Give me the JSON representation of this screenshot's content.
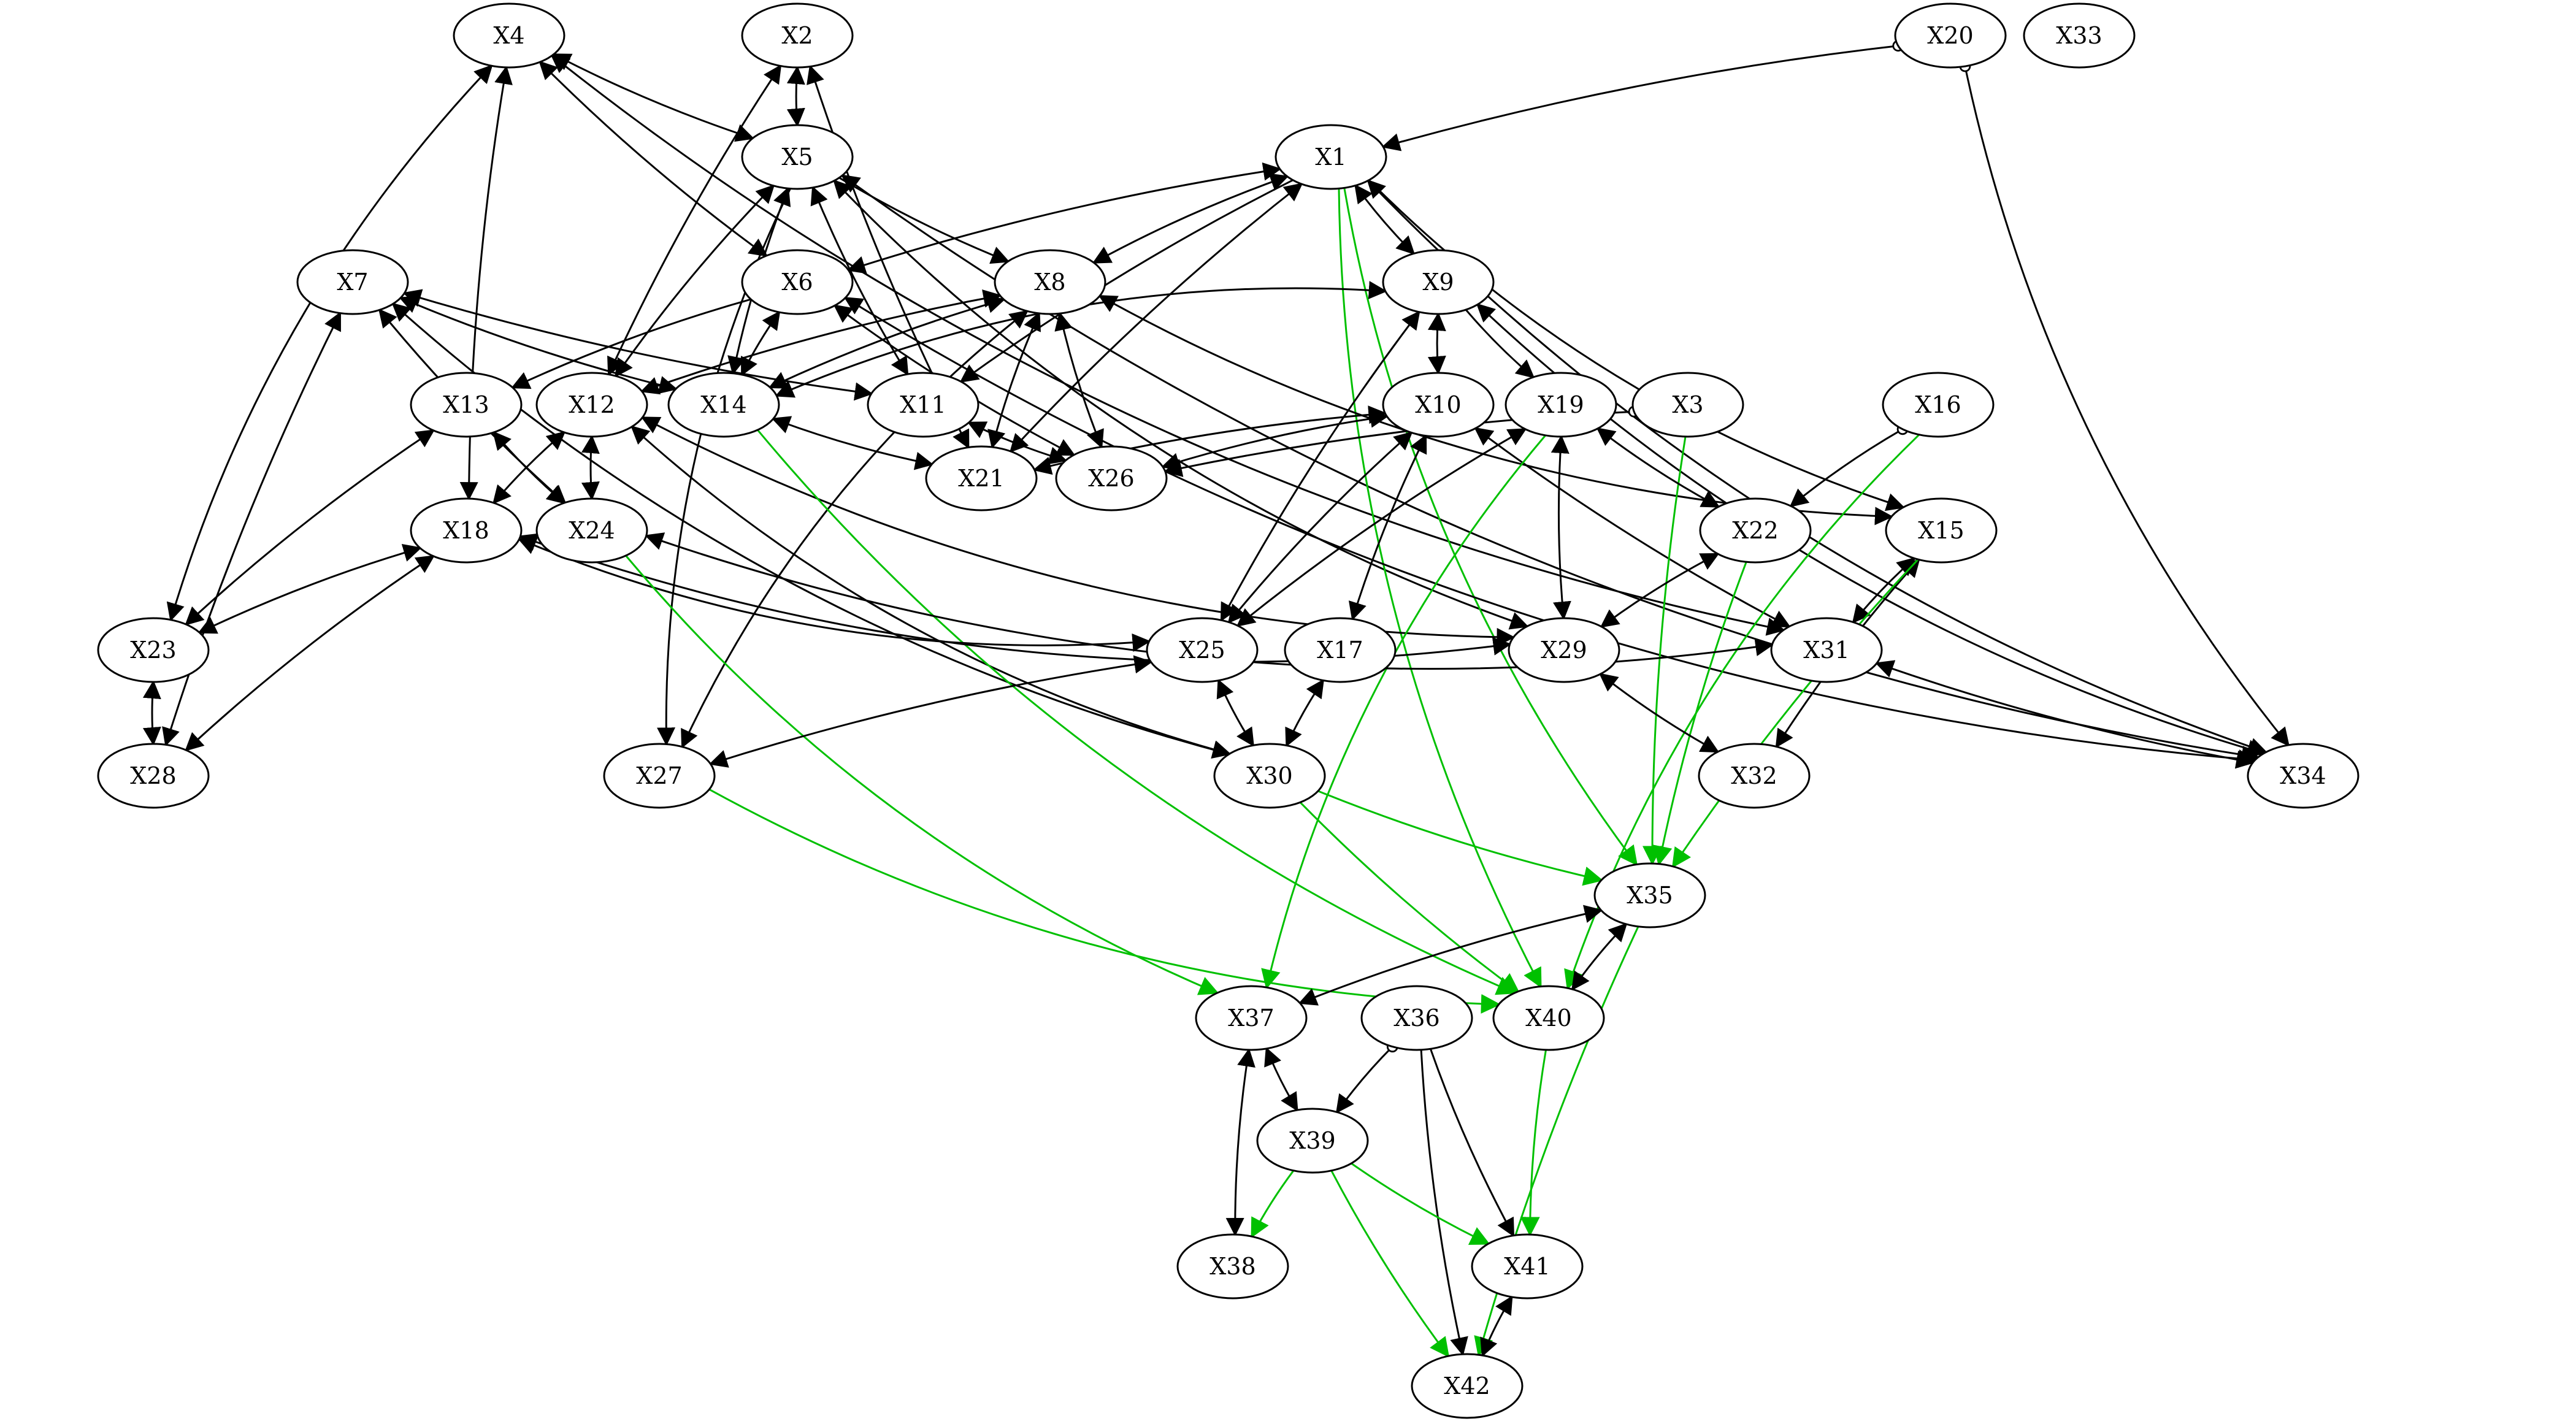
{
  "nodes": [
    {
      "id": "X1",
      "label": "X1"
    },
    {
      "id": "X2",
      "label": "X2"
    },
    {
      "id": "X3",
      "label": "X3"
    },
    {
      "id": "X4",
      "label": "X4"
    },
    {
      "id": "X5",
      "label": "X5"
    },
    {
      "id": "X6",
      "label": "X6"
    },
    {
      "id": "X7",
      "label": "X7"
    },
    {
      "id": "X8",
      "label": "X8"
    },
    {
      "id": "X9",
      "label": "X9"
    },
    {
      "id": "X10",
      "label": "X10"
    },
    {
      "id": "X11",
      "label": "X11"
    },
    {
      "id": "X12",
      "label": "X12"
    },
    {
      "id": "X13",
      "label": "X13"
    },
    {
      "id": "X14",
      "label": "X14"
    },
    {
      "id": "X15",
      "label": "X15"
    },
    {
      "id": "X16",
      "label": "X16"
    },
    {
      "id": "X17",
      "label": "X17"
    },
    {
      "id": "X18",
      "label": "X18"
    },
    {
      "id": "X19",
      "label": "X19"
    },
    {
      "id": "X20",
      "label": "X20"
    },
    {
      "id": "X21",
      "label": "X21"
    },
    {
      "id": "X22",
      "label": "X22"
    },
    {
      "id": "X23",
      "label": "X23"
    },
    {
      "id": "X24",
      "label": "X24"
    },
    {
      "id": "X25",
      "label": "X25"
    },
    {
      "id": "X26",
      "label": "X26"
    },
    {
      "id": "X27",
      "label": "X27"
    },
    {
      "id": "X28",
      "label": "X28"
    },
    {
      "id": "X29",
      "label": "X29"
    },
    {
      "id": "X30",
      "label": "X30"
    },
    {
      "id": "X31",
      "label": "X31"
    },
    {
      "id": "X32",
      "label": "X32"
    },
    {
      "id": "X33",
      "label": "X33"
    },
    {
      "id": "X34",
      "label": "X34"
    },
    {
      "id": "X35",
      "label": "X35"
    },
    {
      "id": "X36",
      "label": "X36"
    },
    {
      "id": "X37",
      "label": "X37"
    },
    {
      "id": "X38",
      "label": "X38"
    },
    {
      "id": "X39",
      "label": "X39"
    },
    {
      "id": "X40",
      "label": "X40"
    },
    {
      "id": "X41",
      "label": "X41"
    },
    {
      "id": "X42",
      "label": "X42"
    }
  ],
  "edges": [
    {
      "from": "X2",
      "to": "X5",
      "type": "bi"
    },
    {
      "from": "X4",
      "to": "X5",
      "type": "bi"
    },
    {
      "from": "X4",
      "to": "X6",
      "type": "bi"
    },
    {
      "from": "X4",
      "to": "X23",
      "type": "bi"
    },
    {
      "from": "X4",
      "to": "X18",
      "type": "bi"
    },
    {
      "from": "X4",
      "to": "X31",
      "type": "bi"
    },
    {
      "from": "X20",
      "to": "X1",
      "type": "circle-arrow"
    },
    {
      "from": "X20",
      "to": "X34",
      "type": "circle-arrow"
    },
    {
      "from": "X5",
      "to": "X8",
      "type": "directed"
    },
    {
      "from": "X5",
      "to": "X14",
      "type": "bi"
    },
    {
      "from": "X5",
      "to": "X11",
      "type": "bi"
    },
    {
      "from": "X5",
      "to": "X12",
      "type": "bi"
    },
    {
      "from": "X5",
      "to": "X27",
      "type": "directed"
    },
    {
      "from": "X5",
      "to": "X29",
      "type": "bi"
    },
    {
      "from": "X5",
      "to": "X34",
      "type": "bi"
    },
    {
      "from": "X2",
      "to": "X12",
      "type": "bi"
    },
    {
      "from": "X2",
      "to": "X21",
      "type": "bi"
    },
    {
      "from": "X1",
      "to": "X6",
      "type": "bi"
    },
    {
      "from": "X1",
      "to": "X8",
      "type": "bi"
    },
    {
      "from": "X1",
      "to": "X9",
      "type": "bi"
    },
    {
      "from": "X1",
      "to": "X11",
      "type": "directed"
    },
    {
      "from": "X1",
      "to": "X21",
      "type": "bi"
    },
    {
      "from": "X1",
      "to": "X15",
      "type": "directed"
    },
    {
      "from": "X1",
      "to": "X34",
      "type": "bi"
    },
    {
      "from": "X1",
      "to": "X35",
      "type": "green"
    },
    {
      "from": "X1",
      "to": "X40",
      "type": "green"
    },
    {
      "from": "X7",
      "to": "X14",
      "type": "bi"
    },
    {
      "from": "X7",
      "to": "X11",
      "type": "bi"
    },
    {
      "from": "X7",
      "to": "X24",
      "type": "bi"
    },
    {
      "from": "X7",
      "to": "X28",
      "type": "bi"
    },
    {
      "from": "X7",
      "to": "X30",
      "type": "bi"
    },
    {
      "from": "X6",
      "to": "X14",
      "type": "bi"
    },
    {
      "from": "X6",
      "to": "X13",
      "type": "directed"
    },
    {
      "from": "X6",
      "to": "X26",
      "type": "bi"
    },
    {
      "from": "X6",
      "to": "X34",
      "type": "bi"
    },
    {
      "from": "X8",
      "to": "X12",
      "type": "bi"
    },
    {
      "from": "X8",
      "to": "X14",
      "type": "bi"
    },
    {
      "from": "X8",
      "to": "X21",
      "type": "bi"
    },
    {
      "from": "X8",
      "to": "X26",
      "type": "bi"
    },
    {
      "from": "X8",
      "to": "X27",
      "type": "bi"
    },
    {
      "from": "X8",
      "to": "X15",
      "type": "bi"
    },
    {
      "from": "X9",
      "to": "X14",
      "type": "bi"
    },
    {
      "from": "X9",
      "to": "X10",
      "type": "bi"
    },
    {
      "from": "X9",
      "to": "X19",
      "type": "directed"
    },
    {
      "from": "X9",
      "to": "X25",
      "type": "bi"
    },
    {
      "from": "X9",
      "to": "X34",
      "type": "bi"
    },
    {
      "from": "X10",
      "to": "X21",
      "type": "bi"
    },
    {
      "from": "X10",
      "to": "X26",
      "type": "bi"
    },
    {
      "from": "X10",
      "to": "X25",
      "type": "bi"
    },
    {
      "from": "X10",
      "to": "X17",
      "type": "bi"
    },
    {
      "from": "X10",
      "to": "X31",
      "type": "bi"
    },
    {
      "from": "X11",
      "to": "X26",
      "type": "bi"
    },
    {
      "from": "X12",
      "to": "X24",
      "type": "bi"
    },
    {
      "from": "X12",
      "to": "X18",
      "type": "bi"
    },
    {
      "from": "X12",
      "to": "X29",
      "type": "bi"
    },
    {
      "from": "X12",
      "to": "X30",
      "type": "bi"
    },
    {
      "from": "X13",
      "to": "X24",
      "type": "bi"
    },
    {
      "from": "X13",
      "to": "X23",
      "type": "bi"
    },
    {
      "from": "X14",
      "to": "X21",
      "type": "bi"
    },
    {
      "from": "X14",
      "to": "X40",
      "type": "green"
    },
    {
      "from": "X3",
      "to": "X26",
      "type": "circle-arrow"
    },
    {
      "from": "X3",
      "to": "X35",
      "type": "green-thin"
    },
    {
      "from": "X16",
      "to": "X22",
      "type": "circle-arrow"
    },
    {
      "from": "X16",
      "to": "X40",
      "type": "green-thin"
    },
    {
      "from": "X19",
      "to": "X22",
      "type": "bi"
    },
    {
      "from": "X19",
      "to": "X29",
      "type": "bi"
    },
    {
      "from": "X19",
      "to": "X25",
      "type": "bi"
    },
    {
      "from": "X19",
      "to": "X37",
      "type": "green"
    },
    {
      "from": "X22",
      "to": "X29",
      "type": "bi"
    },
    {
      "from": "X22",
      "to": "X35",
      "type": "green"
    },
    {
      "from": "X15",
      "to": "X31",
      "type": "bi"
    },
    {
      "from": "X15",
      "to": "X32",
      "type": "bi"
    },
    {
      "from": "X15",
      "to": "X35",
      "type": "green"
    },
    {
      "from": "X18",
      "to": "X23",
      "type": "bi"
    },
    {
      "from": "X18",
      "to": "X28",
      "type": "bi"
    },
    {
      "from": "X18",
      "to": "X25",
      "type": "bi"
    },
    {
      "from": "X18",
      "to": "X29",
      "type": "bi"
    },
    {
      "from": "X24",
      "to": "X31",
      "type": "bi"
    },
    {
      "from": "X24",
      "to": "X37",
      "type": "green"
    },
    {
      "from": "X23",
      "to": "X28",
      "type": "bi"
    },
    {
      "from": "X25",
      "to": "X27",
      "type": "bi"
    },
    {
      "from": "X25",
      "to": "X30",
      "type": "bi"
    },
    {
      "from": "X17",
      "to": "X30",
      "type": "bi"
    },
    {
      "from": "X29",
      "to": "X32",
      "type": "bi"
    },
    {
      "from": "X31",
      "to": "X34",
      "type": "bi"
    },
    {
      "from": "X27",
      "to": "X40",
      "type": "green"
    },
    {
      "from": "X30",
      "to": "X35",
      "type": "green"
    },
    {
      "from": "X30",
      "to": "X40",
      "type": "green"
    },
    {
      "from": "X35",
      "to": "X37",
      "type": "bi"
    },
    {
      "from": "X35",
      "to": "X40",
      "type": "bi"
    },
    {
      "from": "X35",
      "to": "X42",
      "type": "green"
    },
    {
      "from": "X36",
      "to": "X39",
      "type": "circle-arrow"
    },
    {
      "from": "X36",
      "to": "X41",
      "type": "directed"
    },
    {
      "from": "X36",
      "to": "X42",
      "type": "directed"
    },
    {
      "from": "X37",
      "to": "X39",
      "type": "bi"
    },
    {
      "from": "X37",
      "to": "X38",
      "type": "bi"
    },
    {
      "from": "X39",
      "to": "X38",
      "type": "green"
    },
    {
      "from": "X39",
      "to": "X41",
      "type": "green"
    },
    {
      "from": "X39",
      "to": "X42",
      "type": "green"
    },
    {
      "from": "X40",
      "to": "X41",
      "type": "green"
    },
    {
      "from": "X41",
      "to": "X42",
      "type": "bi"
    }
  ],
  "colors": {
    "black": "#000000",
    "green": "#00c000"
  }
}
